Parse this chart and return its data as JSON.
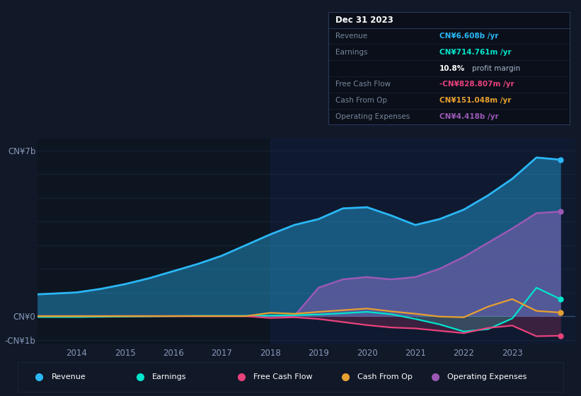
{
  "bg_color": "#111827",
  "plot_bg_color": "#0d1520",
  "years": [
    2013.0,
    2013.5,
    2014.0,
    2014.5,
    2015.0,
    2015.5,
    2016.0,
    2016.5,
    2017.0,
    2017.5,
    2018.0,
    2018.5,
    2019.0,
    2019.5,
    2020.0,
    2020.5,
    2021.0,
    2021.5,
    2022.0,
    2022.5,
    2023.0,
    2023.5,
    2024.0
  ],
  "revenue": [
    0.9,
    0.95,
    1.0,
    1.15,
    1.35,
    1.6,
    1.9,
    2.2,
    2.55,
    3.0,
    3.45,
    3.85,
    4.1,
    4.55,
    4.6,
    4.25,
    3.85,
    4.1,
    4.5,
    5.1,
    5.8,
    6.7,
    6.608
  ],
  "earnings": [
    -0.04,
    -0.04,
    -0.04,
    -0.03,
    -0.02,
    -0.01,
    0.0,
    0.01,
    0.01,
    0.01,
    0.02,
    0.04,
    0.07,
    0.12,
    0.18,
    0.08,
    -0.12,
    -0.35,
    -0.65,
    -0.55,
    -0.1,
    1.2,
    0.714
  ],
  "free_cash_flow": [
    0.0,
    0.0,
    0.0,
    0.0,
    0.0,
    0.0,
    0.0,
    0.0,
    0.0,
    0.0,
    -0.08,
    -0.05,
    -0.12,
    -0.25,
    -0.38,
    -0.48,
    -0.52,
    -0.62,
    -0.72,
    -0.5,
    -0.4,
    -0.85,
    -0.828
  ],
  "cash_from_op": [
    0.0,
    0.0,
    0.0,
    0.0,
    0.0,
    0.0,
    0.0,
    0.0,
    0.0,
    0.0,
    0.14,
    0.1,
    0.18,
    0.25,
    0.32,
    0.2,
    0.1,
    -0.02,
    -0.05,
    0.4,
    0.72,
    0.22,
    0.151
  ],
  "op_expenses": [
    0.0,
    0.0,
    0.0,
    0.0,
    0.0,
    0.0,
    0.0,
    0.0,
    0.0,
    0.0,
    0.0,
    0.0,
    1.2,
    1.55,
    1.65,
    1.55,
    1.65,
    2.0,
    2.5,
    3.1,
    3.7,
    4.35,
    4.418
  ],
  "revenue_color": "#2ab7f5",
  "earnings_color": "#00e5cc",
  "free_cash_flow_color": "#e8427c",
  "cash_from_op_color": "#e8a030",
  "op_expenses_color": "#9b59b6",
  "grid_color": "#1a2a40",
  "zero_line_color": "#3a5070",
  "shade_start": 2018.0,
  "ylim_min": -1.2,
  "ylim_max": 7.5,
  "ytick_positions": [
    -1.0,
    0.0,
    7.0
  ],
  "ytick_labels": [
    "-CN¥1b",
    "CN¥0",
    "CN¥7b"
  ],
  "xlim_min": 2013.2,
  "xlim_max": 2024.3,
  "xtick_years": [
    2014,
    2015,
    2016,
    2017,
    2018,
    2019,
    2020,
    2021,
    2022,
    2023
  ],
  "info_box": {
    "title": "Dec 31 2023",
    "rows": [
      {
        "label": "Revenue",
        "value": "CN¥6.608b /yr",
        "value_color": "#2ab7f5"
      },
      {
        "label": "Earnings",
        "value": "CN¥714.761m /yr",
        "value_color": "#00e5cc"
      },
      {
        "label": "",
        "value": "10.8% profit margin",
        "value_color": "#ffffff"
      },
      {
        "label": "Free Cash Flow",
        "value": "-CN¥828.807m /yr",
        "value_color": "#e8427c"
      },
      {
        "label": "Cash From Op",
        "value": "CN¥151.048m /yr",
        "value_color": "#e8a030"
      },
      {
        "label": "Operating Expenses",
        "value": "CN¥4.418b /yr",
        "value_color": "#9b59b6"
      }
    ]
  },
  "legend_items": [
    {
      "label": "Revenue",
      "color": "#2ab7f5"
    },
    {
      "label": "Earnings",
      "color": "#00e5cc"
    },
    {
      "label": "Free Cash Flow",
      "color": "#e8427c"
    },
    {
      "label": "Cash From Op",
      "color": "#e8a030"
    },
    {
      "label": "Operating Expenses",
      "color": "#9b59b6"
    }
  ]
}
